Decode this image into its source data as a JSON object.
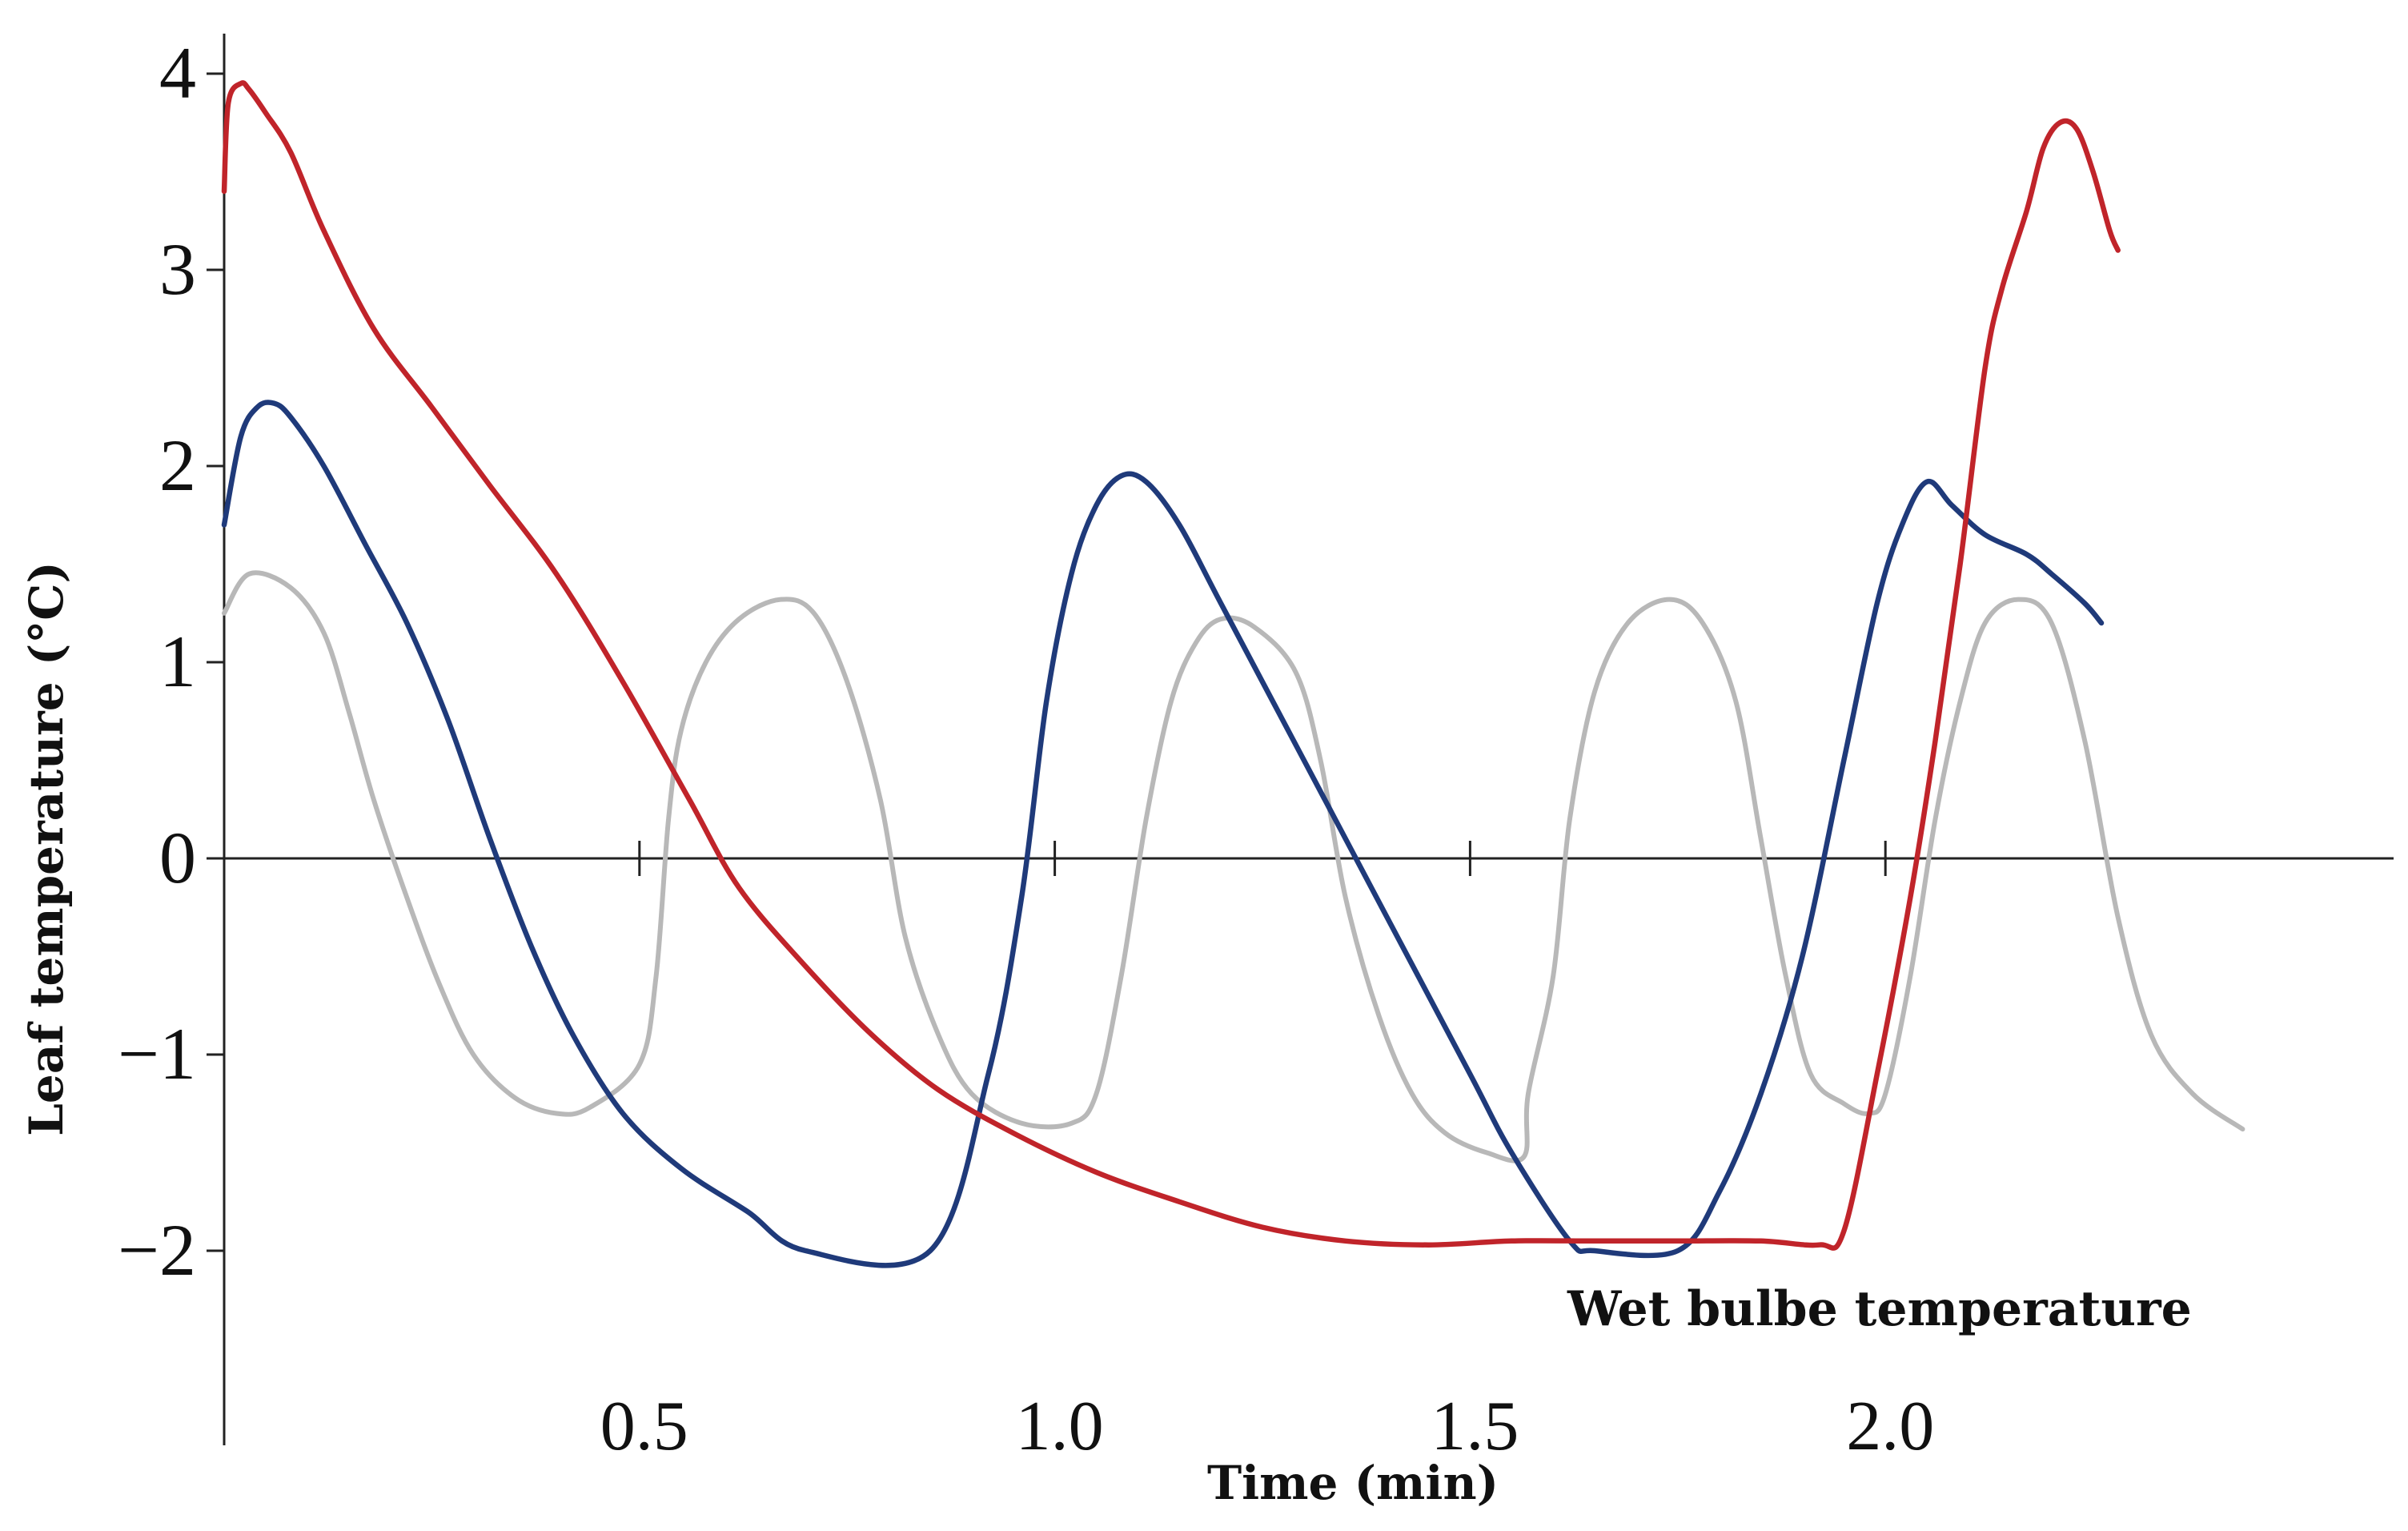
{
  "chart_data": {
    "type": "line",
    "title": "",
    "xlabel": "Time (min)",
    "ylabel": "Leaf temperature (°C)",
    "xlim": [
      0,
      2.5
    ],
    "ylim": [
      -2.9,
      4.1
    ],
    "x_ticks": [
      0.5,
      1.0,
      1.5,
      2.0
    ],
    "x_tick_labels": [
      "0.5",
      "1.0",
      "1.5",
      "2.0"
    ],
    "y_ticks": [
      4,
      3,
      2,
      1,
      0,
      -1,
      -2
    ],
    "y_tick_labels": [
      "4",
      "3",
      "2",
      "1",
      "0",
      "−1",
      "−2"
    ],
    "grid": false,
    "legend": "none",
    "annotation": "Wet bulbe temperature",
    "series": [
      {
        "color": "#b8b8b8",
        "points": [
          [
            0,
            1.25
          ],
          [
            0.03,
            1.45
          ],
          [
            0.08,
            1.38
          ],
          [
            0.12,
            1.15
          ],
          [
            0.15,
            0.75
          ],
          [
            0.18,
            0.3
          ],
          [
            0.22,
            -0.2
          ],
          [
            0.26,
            -0.65
          ],
          [
            0.3,
            -1.0
          ],
          [
            0.35,
            -1.22
          ],
          [
            0.4,
            -1.3
          ],
          [
            0.44,
            -1.27
          ],
          [
            0.5,
            -1.05
          ],
          [
            0.52,
            -0.6
          ],
          [
            0.535,
            0.2
          ],
          [
            0.55,
            0.65
          ],
          [
            0.58,
            1.0
          ],
          [
            0.62,
            1.22
          ],
          [
            0.67,
            1.32
          ],
          [
            0.71,
            1.25
          ],
          [
            0.75,
            0.9
          ],
          [
            0.79,
            0.3
          ],
          [
            0.82,
            -0.4
          ],
          [
            0.86,
            -0.9
          ],
          [
            0.9,
            -1.2
          ],
          [
            0.96,
            -1.35
          ],
          [
            1.02,
            -1.35
          ],
          [
            1.05,
            -1.2
          ],
          [
            1.08,
            -0.6
          ],
          [
            1.11,
            0.2
          ],
          [
            1.14,
            0.8
          ],
          [
            1.17,
            1.1
          ],
          [
            1.2,
            1.22
          ],
          [
            1.24,
            1.18
          ],
          [
            1.29,
            0.95
          ],
          [
            1.32,
            0.5
          ],
          [
            1.35,
            -0.2
          ],
          [
            1.39,
            -0.8
          ],
          [
            1.43,
            -1.2
          ],
          [
            1.47,
            -1.4
          ],
          [
            1.52,
            -1.5
          ],
          [
            1.565,
            -1.52
          ],
          [
            1.57,
            -1.2
          ],
          [
            1.6,
            -0.6
          ],
          [
            1.62,
            0.2
          ],
          [
            1.65,
            0.85
          ],
          [
            1.69,
            1.2
          ],
          [
            1.74,
            1.32
          ],
          [
            1.78,
            1.2
          ],
          [
            1.82,
            0.8
          ],
          [
            1.85,
            0.1
          ],
          [
            1.88,
            -0.6
          ],
          [
            1.91,
            -1.1
          ],
          [
            1.95,
            -1.25
          ],
          [
            1.98,
            -1.3
          ],
          [
            2.0,
            -1.2
          ],
          [
            2.03,
            -0.6
          ],
          [
            2.06,
            0.2
          ],
          [
            2.09,
            0.8
          ],
          [
            2.12,
            1.2
          ],
          [
            2.16,
            1.32
          ],
          [
            2.2,
            1.2
          ],
          [
            2.24,
            0.6
          ],
          [
            2.28,
            -0.3
          ],
          [
            2.32,
            -0.9
          ],
          [
            2.37,
            -1.2
          ],
          [
            2.43,
            -1.38
          ]
        ]
      },
      {
        "color": "#1f3a7a",
        "points": [
          [
            0,
            1.7
          ],
          [
            0.02,
            2.15
          ],
          [
            0.04,
            2.3
          ],
          [
            0.06,
            2.32
          ],
          [
            0.08,
            2.25
          ],
          [
            0.12,
            2.0
          ],
          [
            0.17,
            1.6
          ],
          [
            0.22,
            1.2
          ],
          [
            0.27,
            0.7
          ],
          [
            0.32,
            0.1
          ],
          [
            0.37,
            -0.45
          ],
          [
            0.42,
            -0.9
          ],
          [
            0.48,
            -1.3
          ],
          [
            0.55,
            -1.58
          ],
          [
            0.63,
            -1.8
          ],
          [
            0.7,
            -2.0
          ],
          [
            0.85,
            -2.0
          ],
          [
            0.92,
            -1.1
          ],
          [
            0.96,
            -0.2
          ],
          [
            0.99,
            0.8
          ],
          [
            1.02,
            1.45
          ],
          [
            1.05,
            1.8
          ],
          [
            1.08,
            1.95
          ],
          [
            1.11,
            1.92
          ],
          [
            1.15,
            1.7
          ],
          [
            1.2,
            1.3
          ],
          [
            1.3,
            0.5
          ],
          [
            1.4,
            -0.3
          ],
          [
            1.5,
            -1.1
          ],
          [
            1.55,
            -1.5
          ],
          [
            1.62,
            -1.95
          ],
          [
            1.65,
            -2.0
          ],
          [
            1.75,
            -2.0
          ],
          [
            1.8,
            -1.7
          ],
          [
            1.85,
            -1.2
          ],
          [
            1.9,
            -0.5
          ],
          [
            1.95,
            0.5
          ],
          [
            1.99,
            1.3
          ],
          [
            2.02,
            1.7
          ],
          [
            2.05,
            1.92
          ],
          [
            2.08,
            1.8
          ],
          [
            2.12,
            1.65
          ],
          [
            2.17,
            1.55
          ],
          [
            2.2,
            1.45
          ],
          [
            2.24,
            1.3
          ],
          [
            2.26,
            1.2
          ]
        ]
      },
      {
        "color": "#c0242a",
        "points": [
          [
            0,
            3.4
          ],
          [
            0.005,
            3.85
          ],
          [
            0.02,
            3.95
          ],
          [
            0.03,
            3.92
          ],
          [
            0.05,
            3.8
          ],
          [
            0.08,
            3.6
          ],
          [
            0.12,
            3.2
          ],
          [
            0.18,
            2.7
          ],
          [
            0.25,
            2.3
          ],
          [
            0.32,
            1.9
          ],
          [
            0.4,
            1.45
          ],
          [
            0.48,
            0.9
          ],
          [
            0.56,
            0.3
          ],
          [
            0.62,
            -0.15
          ],
          [
            0.7,
            -0.55
          ],
          [
            0.78,
            -0.9
          ],
          [
            0.86,
            -1.18
          ],
          [
            0.95,
            -1.4
          ],
          [
            1.05,
            -1.6
          ],
          [
            1.15,
            -1.75
          ],
          [
            1.25,
            -1.88
          ],
          [
            1.35,
            -1.95
          ],
          [
            1.45,
            -1.97
          ],
          [
            1.55,
            -1.95
          ],
          [
            1.65,
            -1.95
          ],
          [
            1.75,
            -1.95
          ],
          [
            1.85,
            -1.95
          ],
          [
            1.92,
            -1.97
          ],
          [
            1.95,
            -1.9
          ],
          [
            1.99,
            -1.1
          ],
          [
            2.03,
            -0.2
          ],
          [
            2.06,
            0.6
          ],
          [
            2.09,
            1.5
          ],
          [
            2.12,
            2.5
          ],
          [
            2.14,
            2.9
          ],
          [
            2.17,
            3.3
          ],
          [
            2.19,
            3.62
          ],
          [
            2.21,
            3.75
          ],
          [
            2.23,
            3.72
          ],
          [
            2.25,
            3.5
          ],
          [
            2.27,
            3.2
          ],
          [
            2.28,
            3.1
          ]
        ]
      }
    ]
  }
}
